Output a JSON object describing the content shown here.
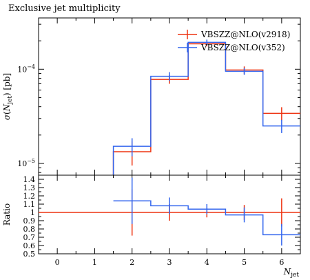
{
  "chart_data": {
    "type": "histogram",
    "title": "Exclusive jet multiplicity",
    "main_ylabel": "σ(N_jet) [pb]",
    "ratio_ylabel": "Ratio",
    "xlabel": "N_jet",
    "xlim": [
      -0.5,
      6.5
    ],
    "x_ticks": [
      0,
      1,
      2,
      3,
      4,
      5,
      6
    ],
    "main": {
      "yscale": "log",
      "ylim": [
        7.5e-06,
        0.00035
      ],
      "y_tick_labels": [
        {
          "value": 1e-05,
          "mantissa": "10",
          "exponent": "−5"
        },
        {
          "value": 0.0001,
          "mantissa": "10",
          "exponent": "−4"
        }
      ]
    },
    "ratio": {
      "ylim": [
        0.5,
        1.45
      ],
      "y_ticks": [
        0.5,
        0.6,
        0.7,
        0.8,
        0.9,
        1,
        1.1,
        1.2,
        1.3,
        1.4
      ],
      "y_tick_labels": [
        "0.5",
        "0.6",
        "0.7",
        "0.8",
        "0.9",
        "1",
        "1.1",
        "1.2",
        "1.3",
        "1.4"
      ]
    },
    "legend_position": "top-right",
    "series": [
      {
        "name": "VBSZZ@NLO(v2918)",
        "color": "#ee3311",
        "bins": [
          {
            "x": 2,
            "y": 1.33e-05,
            "yerr": 3.8e-06,
            "ratio": 1.0,
            "ratio_err": 0.28
          },
          {
            "x": 3,
            "y": 7.8e-05,
            "yerr": 8e-06,
            "ratio": 1.0,
            "ratio_err": 0.1
          },
          {
            "x": 4,
            "y": 0.000186,
            "yerr": 1.2e-05,
            "ratio": 1.0,
            "ratio_err": 0.06
          },
          {
            "x": 5,
            "y": 9.8e-05,
            "yerr": 9e-06,
            "ratio": 1.0,
            "ratio_err": 0.09
          },
          {
            "x": 6,
            "y": 3.4e-05,
            "yerr": 5.5e-06,
            "ratio": 1.0,
            "ratio_err": 0.17
          }
        ]
      },
      {
        "name": "VBSZZ@NLO(v352)",
        "color": "#3366ee",
        "bins": [
          {
            "x": 2,
            "y": 1.52e-05,
            "yerr": 3.3e-06,
            "ratio": 1.14,
            "ratio_err": 0.28
          },
          {
            "x": 3,
            "y": 8.4e-05,
            "yerr": 9e-06,
            "ratio": 1.08,
            "ratio_err": 0.1
          },
          {
            "x": 4,
            "y": 0.000193,
            "yerr": 1.3e-05,
            "ratio": 1.04,
            "ratio_err": 0.06
          },
          {
            "x": 5,
            "y": 9.5e-05,
            "yerr": 8e-06,
            "ratio": 0.97,
            "ratio_err": 0.09
          },
          {
            "x": 6,
            "y": 2.5e-05,
            "yerr": 4e-06,
            "ratio": 0.73,
            "ratio_err": 0.13
          }
        ]
      }
    ]
  }
}
